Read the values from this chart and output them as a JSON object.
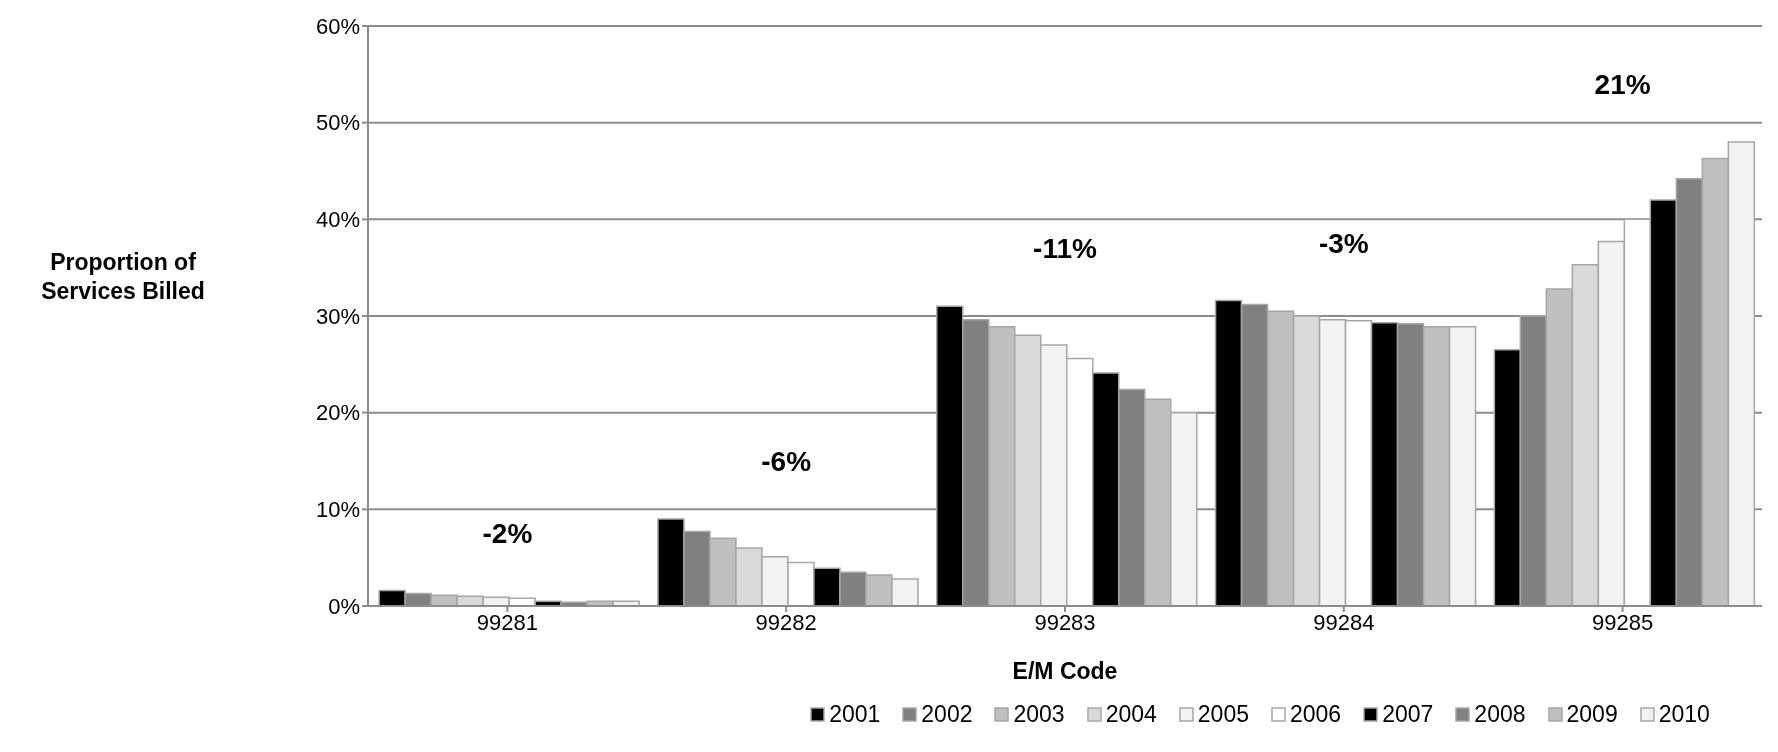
{
  "chart_data": {
    "type": "bar",
    "xlabel": "E/M Code",
    "ylabel": "Proportion of Services Billed",
    "categories": [
      "99281",
      "99282",
      "99283",
      "99284",
      "99285"
    ],
    "series": [
      {
        "name": "2001",
        "color": "#000000",
        "values": [
          1.6,
          9.0,
          31.0,
          31.6,
          26.5
        ]
      },
      {
        "name": "2002",
        "color": "#808080",
        "values": [
          1.3,
          7.7,
          29.6,
          31.2,
          30.0
        ]
      },
      {
        "name": "2003",
        "color": "#bfbfbf",
        "values": [
          1.1,
          7.0,
          28.9,
          30.5,
          32.8
        ]
      },
      {
        "name": "2004",
        "color": "#d9d9d9",
        "values": [
          1.0,
          6.0,
          28.0,
          30.0,
          35.3
        ]
      },
      {
        "name": "2005",
        "color": "#f2f2f2",
        "values": [
          0.9,
          5.1,
          27.0,
          29.6,
          37.7
        ]
      },
      {
        "name": "2006",
        "color": "#ffffff",
        "values": [
          0.8,
          4.5,
          25.6,
          29.5,
          40.0
        ]
      },
      {
        "name": "2007",
        "color": "#000000",
        "values": [
          0.5,
          3.9,
          24.1,
          29.3,
          42.0
        ]
      },
      {
        "name": "2008",
        "color": "#808080",
        "values": [
          0.4,
          3.5,
          22.4,
          29.2,
          44.2
        ]
      },
      {
        "name": "2009",
        "color": "#bfbfbf",
        "values": [
          0.5,
          3.2,
          21.4,
          28.9,
          46.3
        ]
      },
      {
        "name": "2010",
        "color": "#f2f2f2",
        "values": [
          0.5,
          2.8,
          20.0,
          28.9,
          48.0
        ]
      }
    ],
    "ylim": [
      0,
      60
    ],
    "yticks": [
      {
        "value": 0,
        "label": "0%"
      },
      {
        "value": 10,
        "label": "10%"
      },
      {
        "value": 20,
        "label": "20%"
      },
      {
        "value": 30,
        "label": "30%"
      },
      {
        "value": 40,
        "label": "40%"
      },
      {
        "value": 50,
        "label": "50%"
      },
      {
        "value": 60,
        "label": "60%"
      }
    ],
    "grid": "y",
    "legend": "bottom",
    "annotations": [
      "-2%",
      "-6%",
      "-11%",
      "-3%",
      "21%"
    ]
  }
}
